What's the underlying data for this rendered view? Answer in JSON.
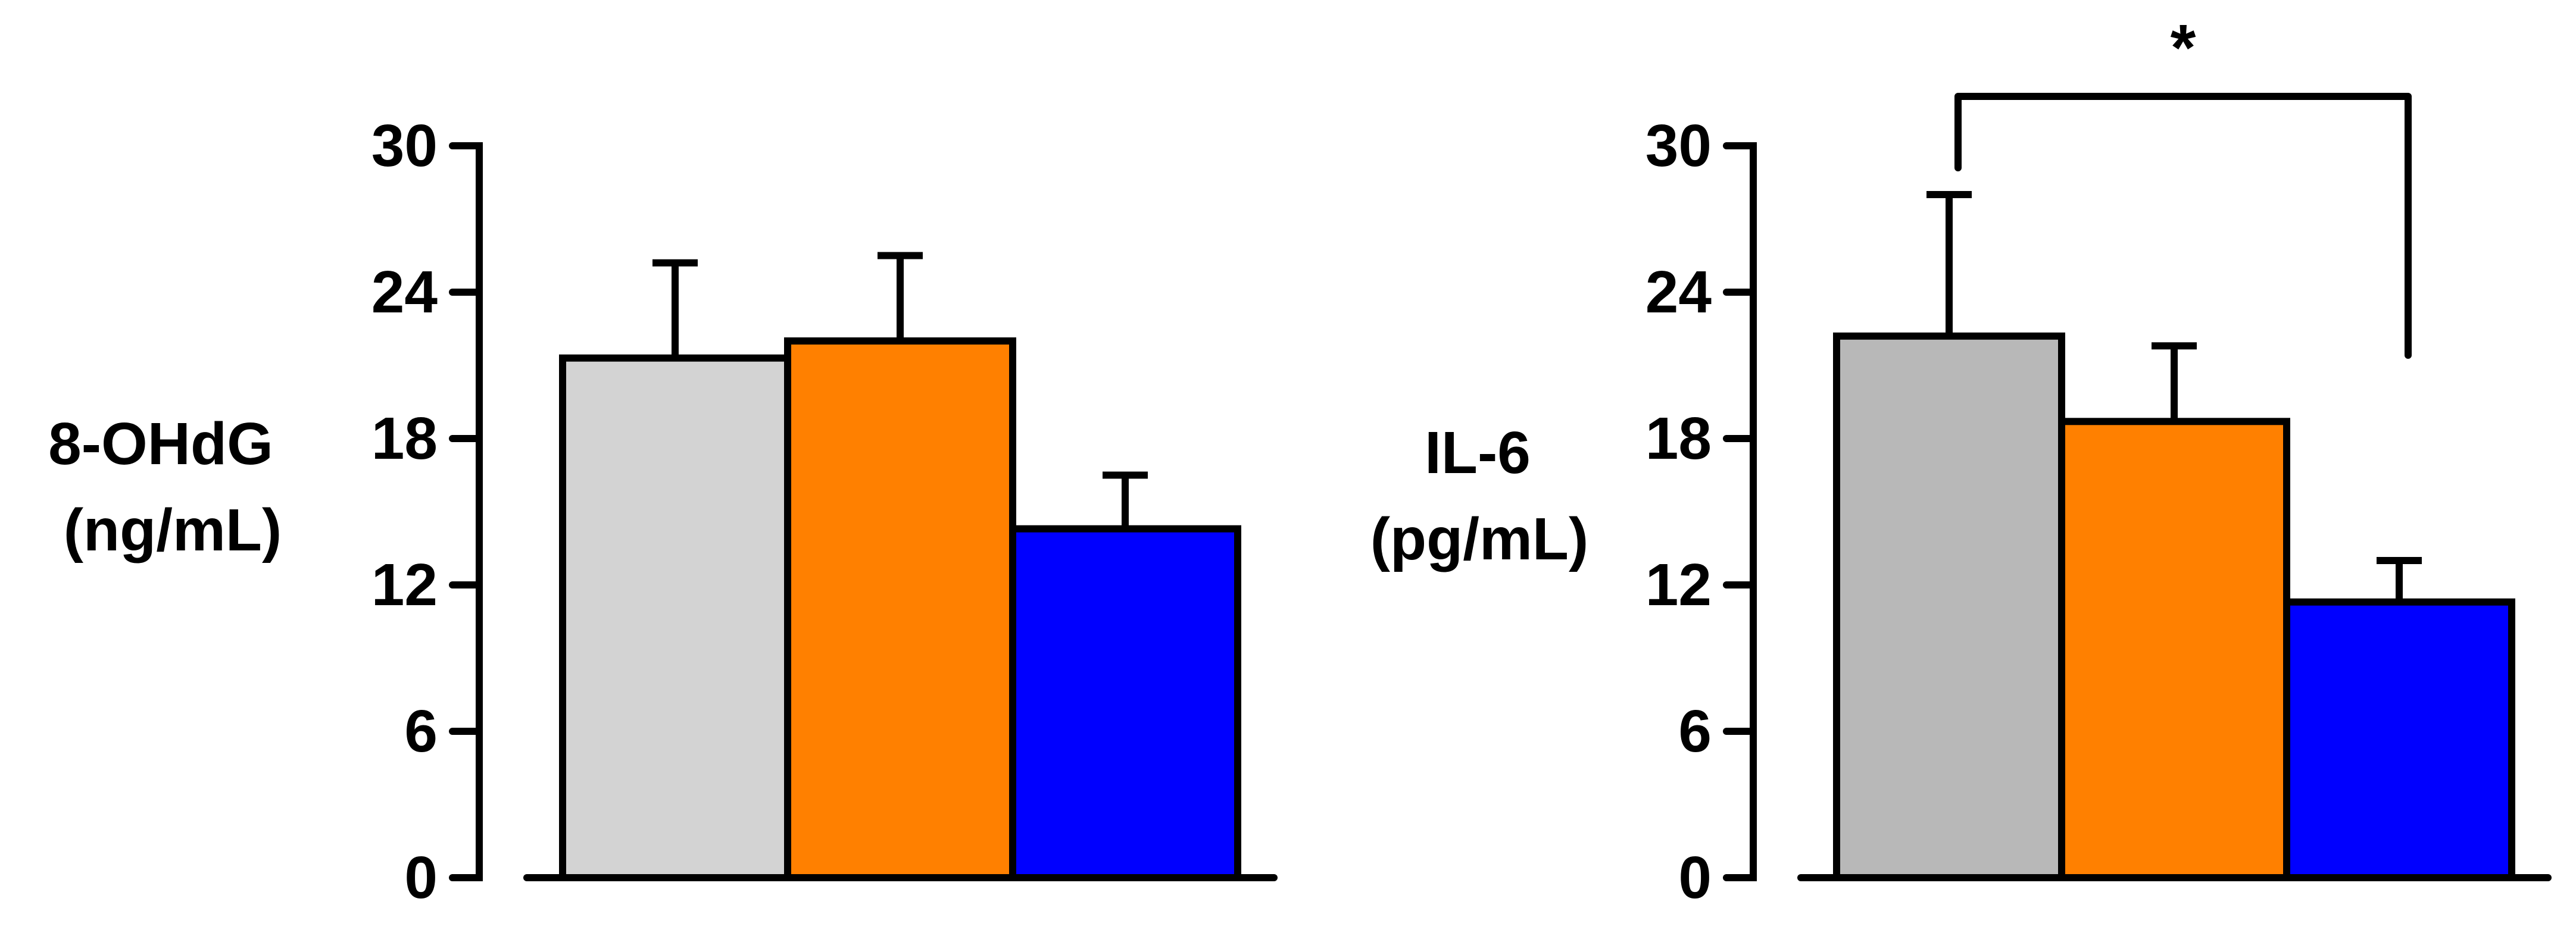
{
  "chart_data": [
    {
      "type": "bar",
      "title": "",
      "ylabel_lines": [
        "8-OHdG",
        "(ng/mL)"
      ],
      "xlabel": "",
      "ylim": [
        0,
        30
      ],
      "ticks": [
        0,
        6,
        12,
        18,
        24,
        30
      ],
      "tick_labels": [
        "0",
        "6",
        "12",
        "18",
        "24",
        "30"
      ],
      "bars": [
        {
          "value": 21.3,
          "error": 3.9,
          "color": "#d3d3d3"
        },
        {
          "value": 22.0,
          "error": 3.5,
          "color": "#ff8000"
        },
        {
          "value": 14.3,
          "error": 2.2,
          "color": "#0000ff"
        }
      ],
      "significance": null
    },
    {
      "type": "bar",
      "title": "",
      "ylabel_lines": [
        "IL-6",
        "(pg/mL)"
      ],
      "xlabel": "",
      "ylim": [
        0,
        30
      ],
      "ticks": [
        0,
        6,
        12,
        18,
        24,
        30
      ],
      "tick_labels": [
        "0",
        "6",
        "12",
        "18",
        "24",
        "30"
      ],
      "bars": [
        {
          "value": 22.2,
          "error": 5.8,
          "color": "#b8b8b8"
        },
        {
          "value": 18.7,
          "error": 3.1,
          "color": "#ff8000"
        },
        {
          "value": 11.3,
          "error": 1.7,
          "color": "#0000ff"
        }
      ],
      "significance": {
        "from_bar": 0,
        "to_bar": 2,
        "label": "*"
      }
    }
  ]
}
